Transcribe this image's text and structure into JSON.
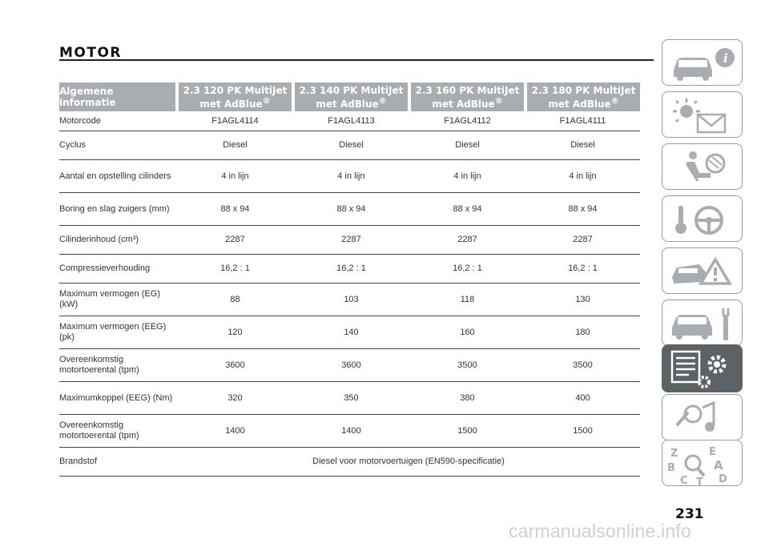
{
  "page": {
    "title": "MOTOR",
    "page_number": "231",
    "watermark": "carmanualsonline.info"
  },
  "table": {
    "headers": [
      "Algemene informatie",
      "2.3 120 PK MultiJet met AdBlue®",
      "2.3 140 PK MultiJet met AdBlue®",
      "2.3 160 PK MultiJet met AdBlue®",
      "2.3 180 PK MultiJet met AdBlue®"
    ],
    "rows": [
      [
        "Motorcode",
        "F1AGL4114",
        "F1AGL4113",
        "F1AGL4112",
        "F1AGL4111"
      ],
      [
        "Cyclus",
        "Diesel",
        "Diesel",
        "Diesel",
        "Diesel"
      ],
      [
        "Aantal en opstelling cilinders",
        "4 in lijn",
        "4 in lijn",
        "4 in lijn",
        "4 in lijn"
      ],
      [
        "Boring en slag zuigers (mm)",
        "88 x 94",
        "88 x 94",
        "88 x 94",
        "88 x 94"
      ],
      [
        "Cilinderinhoud (cm³)",
        "2287",
        "2287",
        "2287",
        "2287"
      ],
      [
        "Compressieverhouding",
        "16,2 : 1",
        "16,2 : 1",
        "16,2 : 1",
        "16,2 : 1"
      ],
      [
        "Maximum vermogen (EG) (kW)",
        "88",
        "103",
        "118",
        "130"
      ],
      [
        "Maximum vermogen (EEG) (pk)",
        "120",
        "140",
        "160",
        "180"
      ],
      [
        "Overeenkomstig motortoerental (tpm)",
        "3600",
        "3600",
        "3500",
        "3500"
      ],
      [
        "Maximumkoppel (EEG) (Nm)",
        "320",
        "350",
        "380",
        "400"
      ],
      [
        "Overeenkomstig motortoerental (tpm)",
        "1400",
        "1400",
        "1500",
        "1500"
      ]
    ],
    "fuel_row": {
      "label": "Brandstof",
      "value": "Diesel voor motorvoertuigen (EN590-specificatie)"
    }
  },
  "sidebar": {
    "tabs": [
      {
        "icon": "car-info-icon",
        "active": false
      },
      {
        "icon": "warning-lights-icon",
        "active": false
      },
      {
        "icon": "airbag-seat-icon",
        "active": false
      },
      {
        "icon": "steering-key-icon",
        "active": false
      },
      {
        "icon": "car-warning-triangle-icon",
        "active": false
      },
      {
        "icon": "car-wrench-icon",
        "active": false
      },
      {
        "icon": "technical-data-icon",
        "active": true
      },
      {
        "icon": "multimedia-icon",
        "active": false
      },
      {
        "icon": "index-az-icon",
        "active": false
      }
    ],
    "active_color": "#5d6266",
    "header_color": "#a9adb1"
  }
}
